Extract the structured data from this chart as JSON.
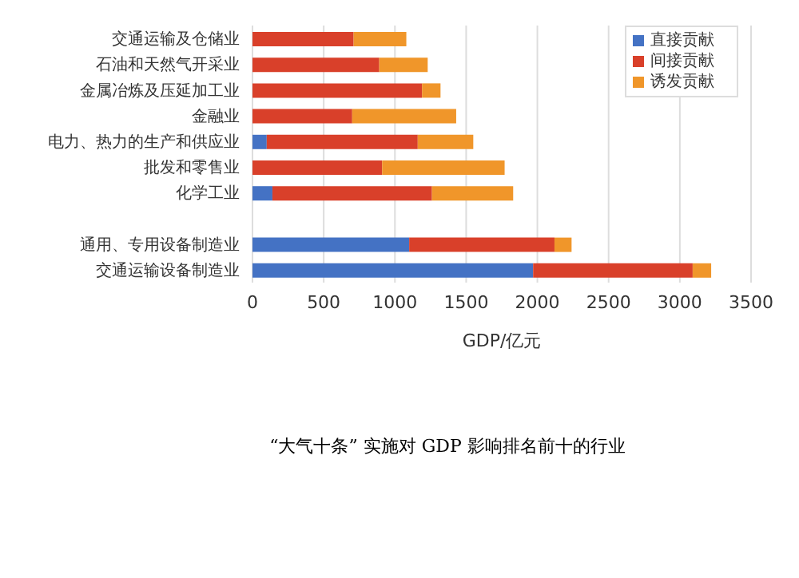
{
  "chart_data": {
    "type": "bar",
    "orientation": "horizontal",
    "stacked": true,
    "categories": [
      "交通运输及仓储业",
      "石油和天然气开采业",
      "金属冶炼及压延加工业",
      "金融业",
      "电力、热力的生产和供应业",
      "批发和零售业",
      "化学工业",
      null,
      "通用、专用设备制造业",
      "交通运输设备制造业"
    ],
    "series": [
      {
        "name": "直接贡献",
        "color": "#4472c4",
        "values": [
          0,
          0,
          0,
          0,
          100,
          0,
          140,
          null,
          1100,
          1970
        ]
      },
      {
        "name": "间接贡献",
        "color": "#d9402a",
        "values": [
          710,
          890,
          1190,
          700,
          1060,
          910,
          1120,
          null,
          1020,
          1120
        ]
      },
      {
        "name": "诱发贡献",
        "color": "#f0962a",
        "values": [
          370,
          340,
          130,
          730,
          390,
          860,
          570,
          null,
          120,
          130
        ]
      }
    ],
    "xlim": [
      0,
      3500
    ],
    "xticks": [
      0,
      500,
      1000,
      1500,
      2000,
      2500,
      3000,
      3500
    ],
    "xlabel": "GDP/亿元",
    "grid": "x",
    "legend": "top right",
    "annotations": [
      "“大气十条” 实施对 GDP 影响排名前十的行业"
    ]
  }
}
